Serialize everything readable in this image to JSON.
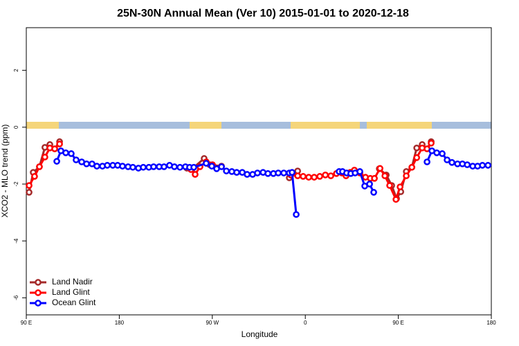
{
  "chart_data": {
    "type": "line",
    "title": "25N-30N Annual Mean (Ver 10)   2015-01-01 to 2020-12-18",
    "xlabel": "Longitude",
    "ylabel": "XCO2 - MLO trend (ppm)",
    "xlim": [
      90,
      540
    ],
    "ylim": [
      -6.6,
      3.5
    ],
    "xticks": [
      {
        "value": 90,
        "label": "90 E"
      },
      180,
      {
        "value": 270,
        "label": "90 W"
      },
      {
        "value": 360,
        "label": "0"
      },
      {
        "value": 450,
        "label": "90 E"
      },
      {
        "value": 540,
        "label": "180"
      }
    ],
    "yticks": [
      -6,
      -4,
      -2,
      0,
      2
    ],
    "legend": "bottomleft",
    "series": [
      {
        "name": "Land Nadir",
        "color": "#a52a2a",
        "x": [
          92.7,
          96.7,
          102.7,
          108,
          112.8,
          117.5,
          122.2,
          200,
          245.4,
          250.7,
          262.1,
          267.5,
          278.9,
          300,
          344.5,
          352.6,
          400,
          431.6,
          438.3,
          443.6,
          448.3,
          452.4,
          457.7,
          463.1,
          467.8,
          473.1,
          477.8,
          481.8
        ],
        "values": [
          -2.29,
          -1.59,
          -1.39,
          -0.71,
          -0.61,
          -0.76,
          -0.51,
          null,
          -1.44,
          -1.46,
          -1.1,
          -1.32,
          -1.37,
          null,
          -1.78,
          -1.54,
          null,
          -1.46,
          -1.68,
          -2.05,
          -2.51,
          -2.27,
          -1.56,
          -1.41,
          -0.73,
          -0.61,
          -0.76,
          -0.51
        ]
      },
      {
        "name": "Land Glint",
        "color": "#ff0000",
        "x": [
          92.7,
          98,
          102.7,
          108,
          112.8,
          117.5,
          122.2,
          200,
          249.4,
          253.4,
          258.1,
          264.1,
          270.2,
          300,
          345.9,
          352.6,
          357.9,
          363.3,
          368.6,
          374,
          379.4,
          384.7,
          390.1,
          395.4,
          399.4,
          403.5,
          407.5,
          412.8,
          418.2,
          422.9,
          426.9,
          432.3,
          437,
          441.6,
          447.7,
          451.7,
          457.7,
          463.1,
          467.8,
          473.1,
          477.8,
          481.8
        ],
        "values": [
          -2.05,
          -1.73,
          -1.39,
          -1.05,
          -0.73,
          -0.76,
          -0.59,
          null,
          -1.49,
          -1.66,
          -1.39,
          -1.22,
          -1.32,
          null,
          -1.68,
          -1.71,
          -1.73,
          -1.76,
          -1.76,
          -1.73,
          -1.68,
          -1.71,
          -1.63,
          -1.61,
          -1.71,
          -1.59,
          -1.51,
          -1.61,
          -1.76,
          -1.8,
          -1.8,
          -1.45,
          -1.71,
          -2.05,
          -2.54,
          -2.1,
          -1.71,
          -1.41,
          -1.07,
          -0.73,
          -0.76,
          -0.56
        ]
      },
      {
        "name": "Ocean Glint",
        "color": "#0000ff",
        "x": [
          119.5,
          123.5,
          128.2,
          133.5,
          138.2,
          143.6,
          148.3,
          153.6,
          158.3,
          163.7,
          168.4,
          173.7,
          178.4,
          183.1,
          188.5,
          193.1,
          198.5,
          203.2,
          208.6,
          213.2,
          218.6,
          223.3,
          228.6,
          233.3,
          238.7,
          244,
          248,
          252.1,
          264.1,
          269.5,
          274.2,
          278.9,
          283.6,
          288.9,
          293.6,
          299,
          303.7,
          309,
          313.7,
          319.1,
          323.8,
          329.1,
          333.8,
          339.2,
          344.5,
          347.2,
          351.2,
          380,
          392.7,
          396,
          400,
          404,
          408.2,
          412.8,
          417.5,
          422.2,
          426.2,
          460,
          477.8,
          482.5,
          487.2,
          492.5,
          497.2,
          501.9,
          507.3,
          512,
          516.7,
          522,
          526.7,
          531.4,
          536.8
        ],
        "values": [
          -1.2,
          -0.83,
          -0.9,
          -0.93,
          -1.15,
          -1.22,
          -1.29,
          -1.29,
          -1.37,
          -1.37,
          -1.34,
          -1.34,
          -1.34,
          -1.37,
          -1.39,
          -1.41,
          -1.44,
          -1.41,
          -1.41,
          -1.39,
          -1.39,
          -1.39,
          -1.34,
          -1.39,
          -1.41,
          -1.39,
          -1.41,
          -1.41,
          -1.27,
          -1.37,
          -1.46,
          -1.39,
          -1.54,
          -1.56,
          -1.59,
          -1.59,
          -1.66,
          -1.66,
          -1.61,
          -1.59,
          -1.63,
          -1.63,
          -1.61,
          -1.61,
          -1.61,
          -1.59,
          -3.07,
          null,
          -1.56,
          -1.56,
          -1.61,
          -1.63,
          -1.61,
          -1.56,
          -2.07,
          -2.0,
          -2.29,
          null,
          -1.22,
          -0.83,
          -0.9,
          -0.93,
          -1.15,
          -1.24,
          -1.29,
          -1.29,
          -1.32,
          -1.37,
          -1.37,
          -1.34,
          -1.34
        ]
      }
    ]
  }
}
